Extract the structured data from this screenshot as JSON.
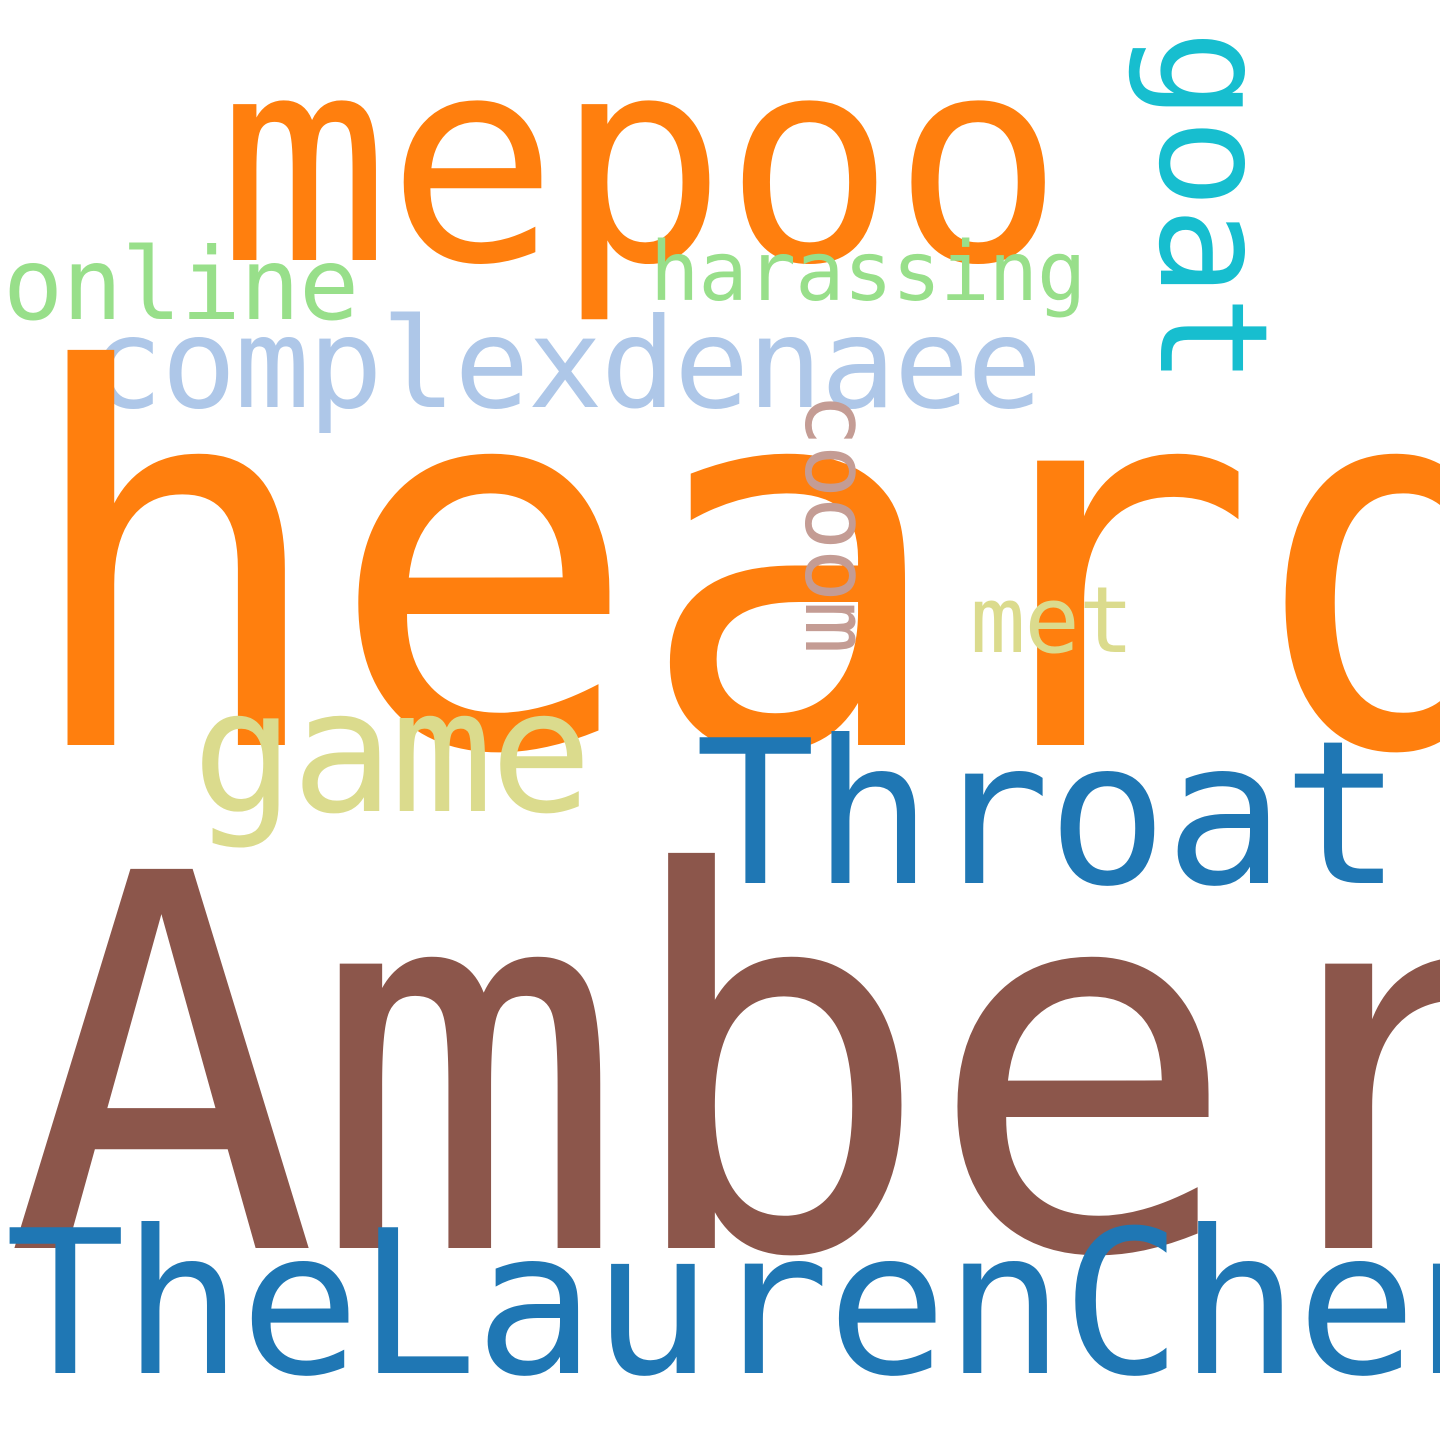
{
  "words": {
    "heard": {
      "text": "heard",
      "color": "#ff7f0e"
    },
    "amber": {
      "text": "Amber",
      "color": "#8c564b"
    },
    "thelaurenchen": {
      "text": "TheLaurenChen",
      "color": "#1f77b4"
    },
    "mepoo": {
      "text": "mepoo",
      "color": "#ff7f0e"
    },
    "throat": {
      "text": "Throat",
      "color": "#1f77b4"
    },
    "game": {
      "text": "game",
      "color": "#dbdb8d"
    },
    "complexdenaee": {
      "text": "complexdenaee",
      "color": "#aec7e8"
    },
    "online": {
      "text": "online",
      "color": "#98df8a"
    },
    "harassing": {
      "text": "harassing",
      "color": "#98df8a"
    },
    "met": {
      "text": "met",
      "color": "#dbdb8d"
    },
    "goat": {
      "text": "goat",
      "color": "#17becf"
    },
    "cooom": {
      "text": "cooom",
      "color": "#c49c94"
    }
  }
}
